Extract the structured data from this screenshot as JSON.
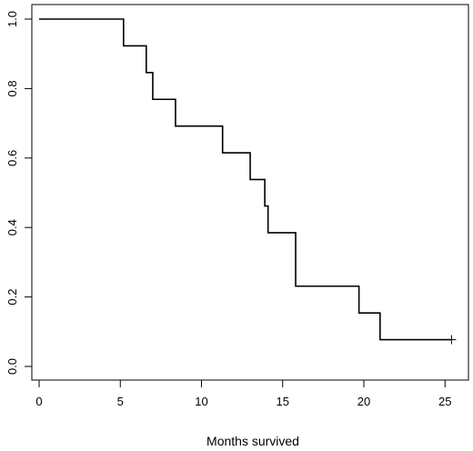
{
  "chart_data": {
    "type": "line",
    "subtype": "kaplan-meier step",
    "title": "",
    "xlabel": "Months survived",
    "ylabel": "",
    "xlim": [
      0,
      26
    ],
    "ylim": [
      0,
      1.0
    ],
    "x_ticks": [
      "0",
      "5",
      "10",
      "15",
      "20",
      "25"
    ],
    "y_ticks": [
      "0.0",
      "0.2",
      "0.4",
      "0.6",
      "0.8",
      "1.0"
    ],
    "grid": false,
    "legend": "none",
    "series": [
      {
        "x": [
          0,
          5.2,
          6.6,
          7.0,
          8.4,
          11.3,
          13.0,
          13.9,
          14.1,
          15.8,
          19.7,
          21.0,
          25.4
        ],
        "y": [
          1.0,
          0.923,
          0.846,
          0.769,
          0.692,
          0.615,
          0.538,
          0.462,
          0.385,
          0.231,
          0.154,
          0.077,
          0.077
        ],
        "censored": [
          {
            "x": 25.4,
            "y": 0.077
          }
        ]
      }
    ]
  }
}
